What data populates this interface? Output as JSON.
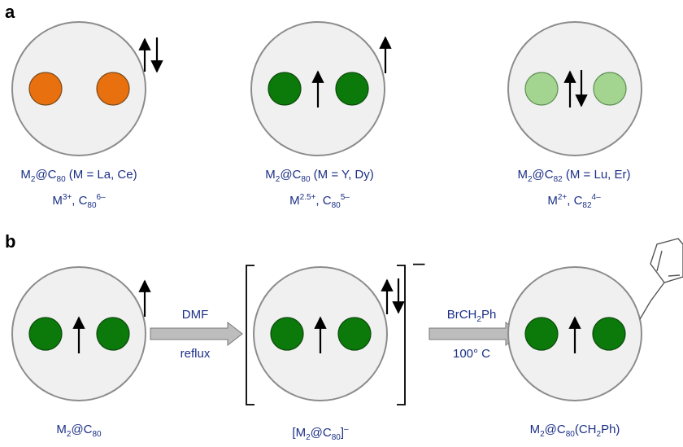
{
  "panels": {
    "a": {
      "label": "a"
    },
    "b": {
      "label": "b"
    }
  },
  "colors": {
    "orange_ion": "#e8700f",
    "dark_green_ion": "#0b7a0b",
    "light_green_ion": "#a3d490",
    "cage_fill": "#f0f0f0",
    "cage_stroke": "#8c8c8c",
    "caption_text": "#1b2f86",
    "arrow_fill": "#bdbdbd"
  },
  "panel_a": [
    {
      "ion_color": "orange",
      "spin": "paired-outside",
      "formula": {
        "pre": "M",
        "sub1": "2",
        "mid": "@C",
        "sub2": "80",
        "post": " (M = La, Ce)"
      },
      "oxidation": {
        "m": "M",
        "m_sup": "3+",
        "c": ", C",
        "c_sub": "80",
        "c_sup": "6–"
      }
    },
    {
      "ion_color": "dark-green",
      "spin": "single-inside-and-outside",
      "formula": {
        "pre": "M",
        "sub1": "2",
        "mid": "@C",
        "sub2": "80",
        "post": " (M = Y, Dy)"
      },
      "oxidation": {
        "m": "M",
        "m_sup": "2.5+",
        "c": ", C",
        "c_sub": "80",
        "c_sup": "5–"
      }
    },
    {
      "ion_color": "light-green",
      "spin": "paired-inside",
      "formula": {
        "pre": "M",
        "sub1": "2",
        "mid": "@C",
        "sub2": "82",
        "post": " (M = Lu, Er)"
      },
      "oxidation": {
        "m": "M",
        "m_sup": "2+",
        "c": ", C",
        "c_sub": "82",
        "c_sup": "4–"
      }
    }
  ],
  "panel_b": {
    "species": [
      {
        "pre": "M",
        "sub1": "2",
        "mid": "@C",
        "sub2": "80",
        "post": ""
      },
      {
        "pre": "[M",
        "sub1": "2",
        "mid": "@C",
        "sub2": "80",
        "post": "]",
        "sup": "–"
      },
      {
        "pre": "M",
        "sub1": "2",
        "mid": "@C",
        "sub2": "80",
        "post": "(CH",
        "sub3": "2",
        "post2": "Ph)"
      }
    ],
    "anion_charge": "–",
    "step1": {
      "above": "DMF",
      "below": "reflux"
    },
    "step2": {
      "above_pre": "BrCH",
      "above_sub": "2",
      "above_post": "Ph",
      "below": "100° C"
    }
  }
}
